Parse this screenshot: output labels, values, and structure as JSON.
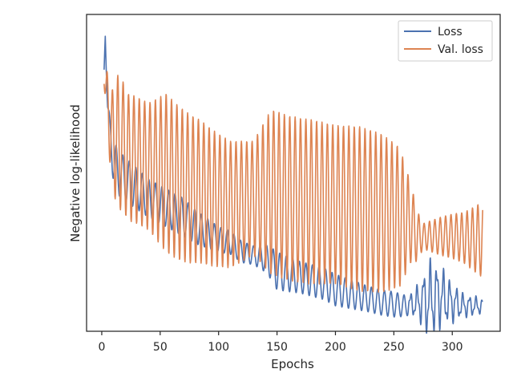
{
  "chart_data": {
    "type": "line",
    "title": "",
    "xlabel": "Epochs",
    "ylabel": "Negative log-likelihood",
    "xlim": [
      -13,
      341
    ],
    "ylim": [
      0,
      100
    ],
    "x_ticks": [
      0,
      50,
      100,
      150,
      200,
      250,
      300
    ],
    "y_ticks_labeled": false,
    "grid": false,
    "legend_position": "top-right",
    "series": [
      {
        "name": "Loss",
        "color": "#4c72b0",
        "points": [
          [
            2,
            82
          ],
          [
            3,
            94
          ],
          [
            5,
            72
          ],
          [
            7,
            62
          ],
          [
            9,
            56
          ],
          [
            11,
            53
          ],
          [
            14,
            50
          ],
          [
            20,
            48
          ],
          [
            30,
            45
          ],
          [
            40,
            42
          ],
          [
            50,
            40
          ],
          [
            60,
            38
          ],
          [
            70,
            36
          ],
          [
            80,
            33
          ],
          [
            90,
            31
          ],
          [
            100,
            29
          ],
          [
            110,
            28
          ],
          [
            120,
            25
          ],
          [
            130,
            24
          ],
          [
            140,
            23
          ],
          [
            146,
            21
          ],
          [
            150,
            19
          ],
          [
            160,
            18
          ],
          [
            170,
            17
          ],
          [
            180,
            16
          ],
          [
            190,
            15
          ],
          [
            200,
            13
          ],
          [
            210,
            12
          ],
          [
            220,
            11
          ],
          [
            230,
            10
          ],
          [
            240,
            9
          ],
          [
            250,
            8.5
          ],
          [
            260,
            8
          ],
          [
            270,
            9
          ],
          [
            280,
            10
          ],
          [
            290,
            11
          ],
          [
            300,
            9
          ],
          [
            310,
            8
          ],
          [
            320,
            8
          ],
          [
            326,
            8
          ]
        ],
        "amplitude": [
          [
            2,
            1
          ],
          [
            6,
            4
          ],
          [
            10,
            7
          ],
          [
            20,
            7
          ],
          [
            40,
            6
          ],
          [
            50,
            6
          ],
          [
            70,
            6
          ],
          [
            100,
            4
          ],
          [
            130,
            3
          ],
          [
            145,
            5
          ],
          [
            150,
            6
          ],
          [
            170,
            5
          ],
          [
            200,
            5
          ],
          [
            230,
            4
          ],
          [
            250,
            4
          ],
          [
            265,
            3
          ],
          [
            272,
            5
          ],
          [
            280,
            10
          ],
          [
            290,
            8
          ],
          [
            300,
            5
          ],
          [
            310,
            3
          ],
          [
            326,
            2
          ]
        ]
      },
      {
        "name": "Val. loss",
        "color": "#dd8452",
        "points": [
          [
            2,
            80
          ],
          [
            5,
            72
          ],
          [
            8,
            62
          ],
          [
            12,
            60
          ],
          [
            14,
            58
          ],
          [
            17,
            60
          ],
          [
            22,
            55
          ],
          [
            30,
            54
          ],
          [
            40,
            52
          ],
          [
            55,
            50
          ],
          [
            65,
            47
          ],
          [
            75,
            45
          ],
          [
            85,
            44
          ],
          [
            95,
            42
          ],
          [
            110,
            40
          ],
          [
            130,
            42
          ],
          [
            145,
            44
          ],
          [
            160,
            42
          ],
          [
            175,
            41
          ],
          [
            200,
            40
          ],
          [
            230,
            38
          ],
          [
            255,
            36
          ],
          [
            265,
            34
          ],
          [
            270,
            30
          ],
          [
            280,
            30
          ],
          [
            300,
            30
          ],
          [
            320,
            29
          ],
          [
            326,
            29
          ]
        ],
        "amplitude": [
          [
            2,
            2
          ],
          [
            5,
            10
          ],
          [
            10,
            16
          ],
          [
            14,
            23
          ],
          [
            17,
            20
          ],
          [
            25,
            20
          ],
          [
            40,
            20
          ],
          [
            55,
            25
          ],
          [
            70,
            24
          ],
          [
            90,
            22
          ],
          [
            110,
            20
          ],
          [
            130,
            18
          ],
          [
            145,
            26
          ],
          [
            160,
            26
          ],
          [
            180,
            26
          ],
          [
            200,
            25
          ],
          [
            220,
            26
          ],
          [
            240,
            25
          ],
          [
            255,
            22
          ],
          [
            265,
            12
          ],
          [
            275,
            4
          ],
          [
            290,
            6
          ],
          [
            310,
            8
          ],
          [
            326,
            12
          ]
        ]
      }
    ]
  },
  "legend": {
    "loss_label": "Loss",
    "val_loss_label": "Val. loss"
  },
  "colors": {
    "loss": "#4c72b0",
    "val_loss": "#dd8452",
    "axes": "#262626"
  }
}
